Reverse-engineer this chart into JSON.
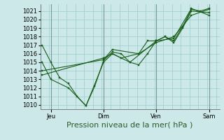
{
  "background_color": "#cce8e8",
  "grid_color": "#99cccc",
  "line_color": "#1a5e1a",
  "ylim": [
    1009.5,
    1021.8
  ],
  "yticks": [
    1010,
    1011,
    1012,
    1013,
    1014,
    1015,
    1016,
    1017,
    1018,
    1019,
    1020,
    1021
  ],
  "xlabel": "Pression niveau de la mer( hPa )",
  "xlabel_fontsize": 8,
  "tick_fontsize": 6,
  "xtick_labels": [
    "Jeu",
    "Dim",
    "Ven",
    "Sam"
  ],
  "xtick_positions": [
    0.5,
    3.5,
    6.5,
    9.5
  ],
  "vline_positions": [
    0.5,
    3.5,
    6.5,
    9.5
  ],
  "xlim": [
    -0.1,
    10.1
  ],
  "series": [
    [
      [
        0.0,
        1017.0
      ],
      [
        0.5,
        1015.0
      ],
      [
        1.0,
        1013.2
      ],
      [
        1.5,
        1012.5
      ],
      [
        2.0,
        1011.0
      ],
      [
        2.5,
        1009.9
      ],
      [
        3.0,
        1012.2
      ],
      [
        3.5,
        1015.2
      ],
      [
        4.0,
        1016.2
      ],
      [
        4.5,
        1016.0
      ],
      [
        5.0,
        1015.0
      ],
      [
        5.5,
        1014.7
      ],
      [
        6.0,
        1016.0
      ],
      [
        6.5,
        1017.5
      ],
      [
        7.0,
        1018.0
      ],
      [
        7.5,
        1017.5
      ],
      [
        8.0,
        1019.2
      ],
      [
        8.5,
        1021.2
      ],
      [
        9.0,
        1021.0
      ],
      [
        9.5,
        1021.3
      ]
    ],
    [
      [
        0.0,
        1015.0
      ],
      [
        0.5,
        1013.0
      ],
      [
        1.5,
        1012.0
      ],
      [
        2.5,
        1009.9
      ],
      [
        3.5,
        1015.0
      ],
      [
        4.0,
        1016.0
      ],
      [
        4.5,
        1015.5
      ],
      [
        5.5,
        1016.0
      ],
      [
        6.0,
        1017.5
      ],
      [
        6.5,
        1017.5
      ],
      [
        7.0,
        1018.0
      ],
      [
        7.5,
        1017.3
      ],
      [
        8.0,
        1019.0
      ],
      [
        8.5,
        1021.0
      ],
      [
        9.5,
        1020.8
      ]
    ],
    [
      [
        0.0,
        1014.0
      ],
      [
        3.5,
        1015.3
      ],
      [
        4.0,
        1016.5
      ],
      [
        5.5,
        1016.0
      ],
      [
        6.5,
        1017.3
      ],
      [
        7.5,
        1018.0
      ],
      [
        8.5,
        1020.5
      ],
      [
        9.5,
        1021.2
      ]
    ],
    [
      [
        0.0,
        1013.5
      ],
      [
        3.5,
        1015.5
      ],
      [
        4.0,
        1016.0
      ],
      [
        5.0,
        1015.0
      ],
      [
        6.5,
        1017.5
      ],
      [
        7.5,
        1017.8
      ],
      [
        8.5,
        1021.3
      ],
      [
        9.5,
        1020.5
      ]
    ]
  ]
}
